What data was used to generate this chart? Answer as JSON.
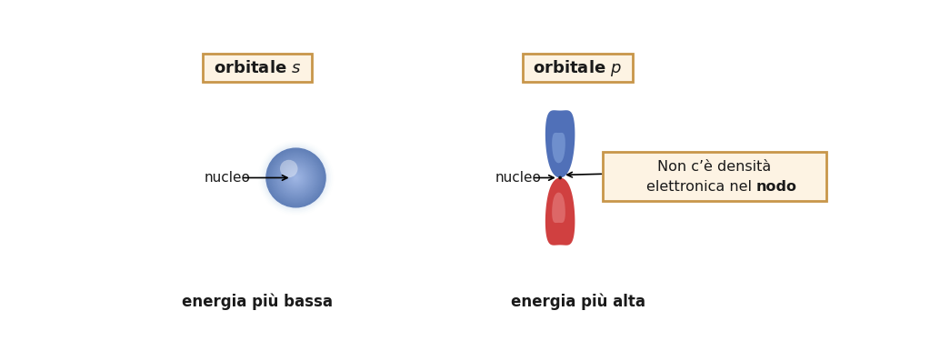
{
  "bg_color": "#ffffff",
  "title_box_facecolor": "#fdf3e3",
  "title_box_edgecolor": "#c8964a",
  "annotation_box_facecolor": "#fdf3e3",
  "annotation_box_edgecolor": "#c8964a",
  "label_s_text": "orbitale $s$",
  "label_p_text": "orbitale $p$",
  "nucleo_s_text": "nucleo",
  "nucleo_p_text": "nucleo",
  "energia_s_text": "energia più bassa",
  "energia_p_text": "energia più alta",
  "annotation_line1": "Non c’è densità",
  "annotation_line2": "elettronica nel ",
  "annotation_bold": "nodo",
  "blue_lobe_outer": "#5070b8",
  "blue_lobe_inner": "#8aaae0",
  "red_lobe_outer": "#d04040",
  "red_lobe_inner": "#e88888",
  "sphere_outer": "#6080b8",
  "sphere_mid": "#8aaad8",
  "sphere_inner": "#b0c8e8",
  "text_color": "#1a1a1a"
}
